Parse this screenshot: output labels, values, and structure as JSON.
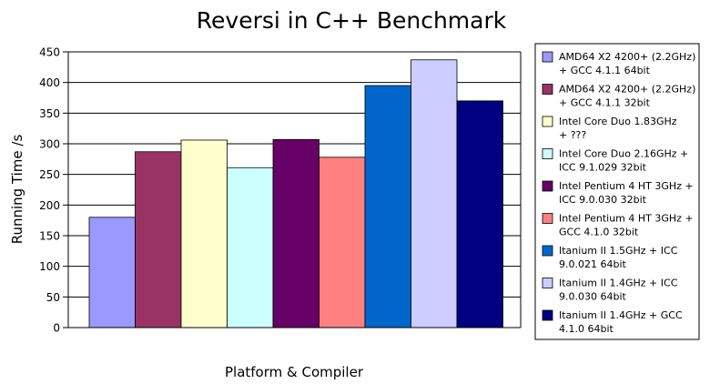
{
  "chart_data": {
    "type": "bar",
    "title": "Reversi in C++ Benchmark",
    "xlabel": "Platform & Compiler",
    "ylabel": "Running Time /s",
    "ylim": [
      0,
      450
    ],
    "yticks": [
      0,
      50,
      100,
      150,
      200,
      250,
      300,
      350,
      400,
      450
    ],
    "grid": true,
    "legend_position": "right",
    "series": [
      {
        "name": "AMD64 X2 4200+ (2.2GHz) + GCC 4.1.1 64bit",
        "legend_lines": [
          "AMD64 X2 4200+ (2.2GHz)",
          "+ GCC 4.1.1 64bit"
        ],
        "value": 180,
        "color": "#9999ff"
      },
      {
        "name": "AMD64 X2 4200+ (2.2GHz) + GCC 4.1.1 32bit",
        "legend_lines": [
          "AMD64 X2 4200+ (2.2GHz)",
          "+ GCC 4.1.1 32bit"
        ],
        "value": 287,
        "color": "#993366"
      },
      {
        "name": "Intel Core Duo 1.83GHz + ???",
        "legend_lines": [
          "Intel Core Duo 1.83GHz",
          "+ ???"
        ],
        "value": 306,
        "color": "#ffffcc"
      },
      {
        "name": "Intel Core Duo 2.16GHz + ICC 9.1.029 32bit",
        "legend_lines": [
          "Intel Core Duo 2.16GHz +",
          "ICC 9.1.029 32bit"
        ],
        "value": 261,
        "color": "#ccffff"
      },
      {
        "name": "Intel Pentium 4 HT 3GHz + ICC 9.0.030 32bit",
        "legend_lines": [
          "Intel Pentium 4 HT 3GHz +",
          "ICC 9.0.030 32bit"
        ],
        "value": 307,
        "color": "#660066"
      },
      {
        "name": "Intel Pentium 4 HT 3GHz + GCC 4.1.0 32bit",
        "legend_lines": [
          "Intel Pentium 4 HT 3GHz +",
          "GCC 4.1.0 32bit"
        ],
        "value": 278,
        "color": "#ff8080"
      },
      {
        "name": "Itanium II 1.5GHz + ICC 9.0.021 64bit",
        "legend_lines": [
          "Itanium II 1.5GHz + ICC",
          "9.0.021 64bit"
        ],
        "value": 395,
        "color": "#0066cc"
      },
      {
        "name": "Itanium II 1.4GHz + ICC 9.0.030 64bit",
        "legend_lines": [
          "Itanium II 1.4GHz + ICC",
          "9.0.030 64bit"
        ],
        "value": 437,
        "color": "#ccccff"
      },
      {
        "name": "Itanium II 1.4GHz + GCC 4.1.0 64bit",
        "legend_lines": [
          "Itanium II 1.4GHz + GCC",
          "4.1.0 64bit"
        ],
        "value": 370,
        "color": "#000080"
      }
    ]
  }
}
